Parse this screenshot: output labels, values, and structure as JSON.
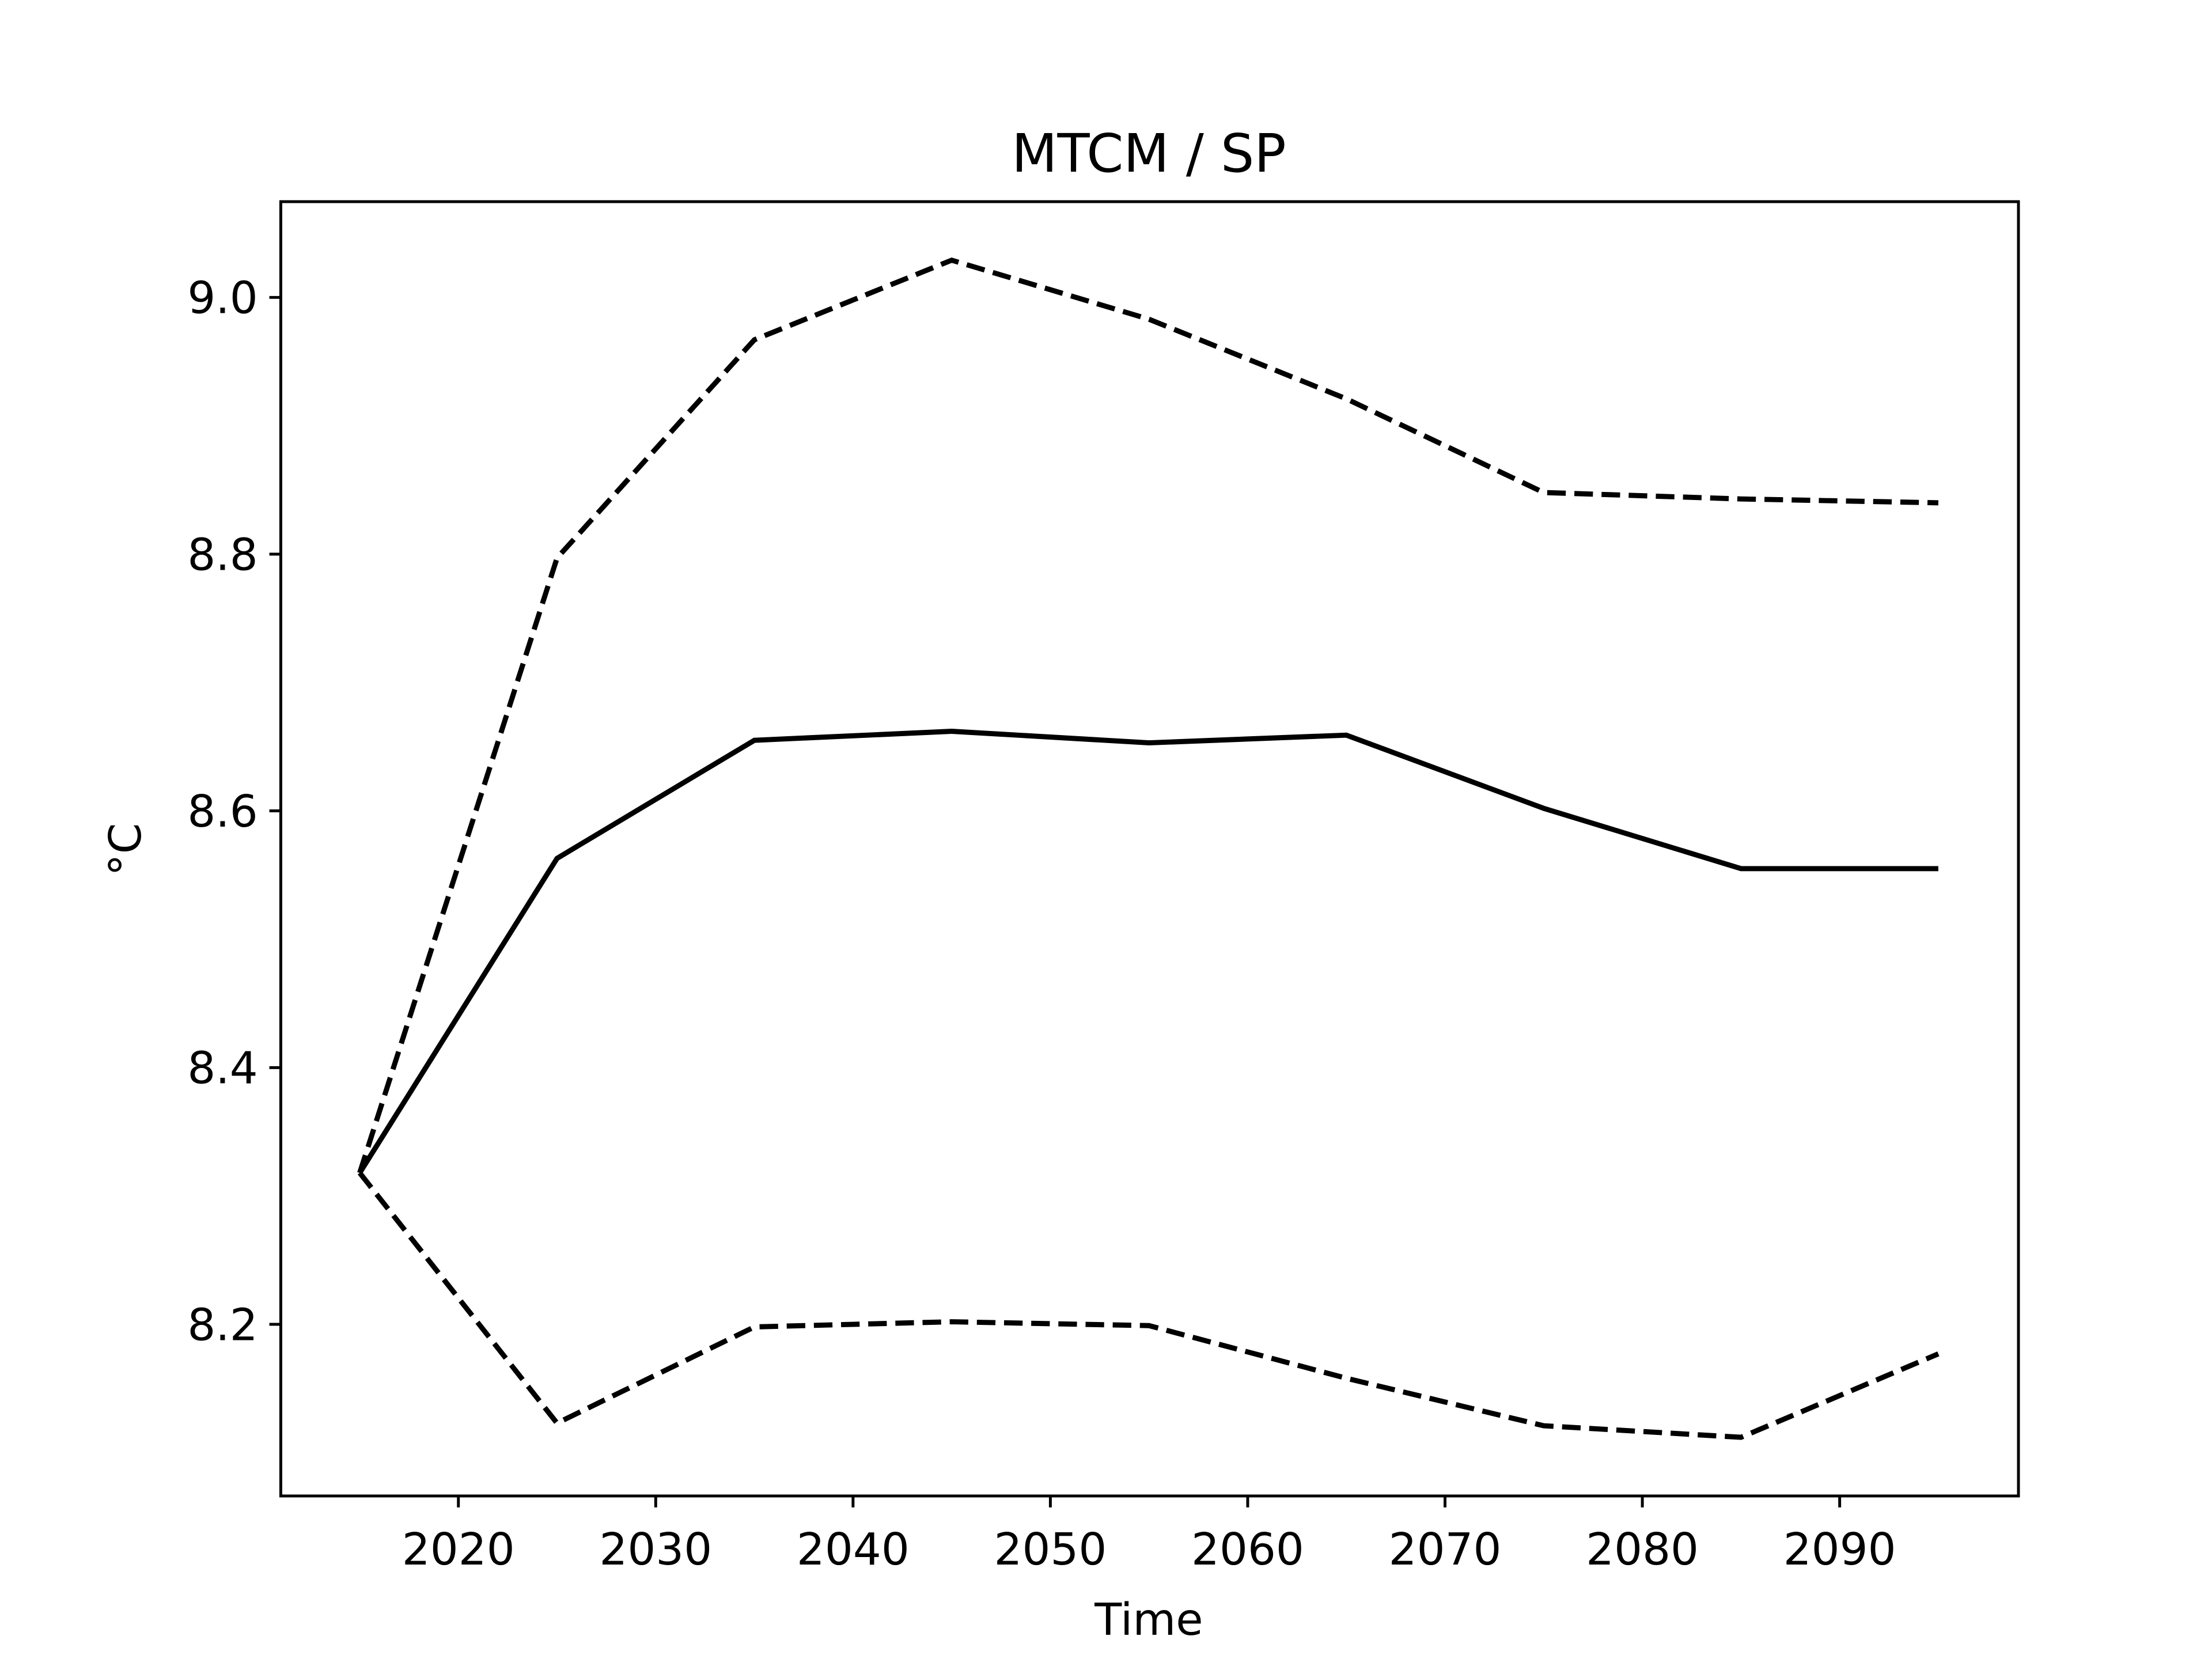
{
  "chart_data": {
    "type": "line",
    "title": "MTCM / SP",
    "xlabel": "Time",
    "ylabel": "°C",
    "x": [
      2015,
      2025,
      2035,
      2045,
      2055,
      2065,
      2075,
      2085,
      2095
    ],
    "series": [
      {
        "color": "#000000",
        "linestyle": "dashed",
        "values": [
          8.318,
          8.797,
          8.967,
          9.029,
          8.983,
          8.921,
          8.848,
          8.843,
          8.84
        ]
      },
      {
        "color": "#000000",
        "linestyle": "solid",
        "values": [
          8.318,
          8.563,
          8.655,
          8.662,
          8.653,
          8.659,
          8.602,
          8.555,
          8.555
        ]
      },
      {
        "color": "#000000",
        "linestyle": "dashed",
        "values": [
          8.318,
          8.123,
          8.198,
          8.202,
          8.199,
          8.158,
          8.121,
          8.112,
          8.177
        ]
      }
    ],
    "xlim": [
      2011.0,
      2099.06
    ],
    "xticks": [
      2020,
      2030,
      2040,
      2050,
      2060,
      2070,
      2080,
      2090
    ],
    "ylim": [
      8.0663,
      9.0746
    ],
    "yticks": [
      8.2,
      8.4,
      8.6,
      8.8,
      {
        "value": 9.0,
        "label": "9.0"
      }
    ],
    "grid": false
  }
}
